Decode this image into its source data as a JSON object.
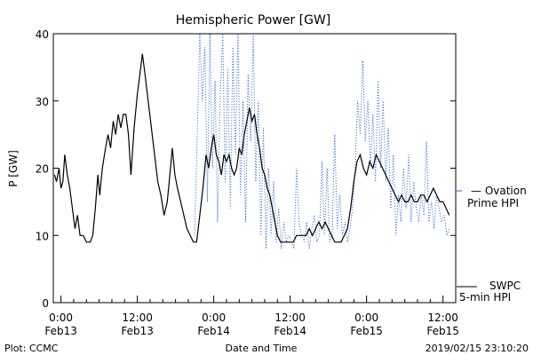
{
  "footer": {
    "plot_credit": "Plot: CCMC",
    "timestamp": "2019/02/15 23:10:20"
  },
  "legend": {
    "ovation_line1": "— Ovation",
    "ovation_line2": "Prime HPI",
    "swpc_line1": "SWPC",
    "swpc_line2": "5-min HPI"
  },
  "colors": {
    "swpc": "#000000",
    "ovation": "#1f5fd6",
    "axis": "#000000"
  },
  "chart_data": {
    "type": "line",
    "title": "Hemispheric Power [GW]",
    "xlabel": "Date and Time",
    "ylabel": "P [GW]",
    "ylim": [
      0,
      40
    ],
    "xlim": [
      0,
      72
    ],
    "x_units": "hours since 2019-02-13 00:00",
    "yticks": [
      0,
      10,
      20,
      30,
      40
    ],
    "xticks": [
      {
        "x": 0,
        "line1": "0:00",
        "line2": "Feb13"
      },
      {
        "x": 12,
        "line1": "12:00",
        "line2": "Feb13"
      },
      {
        "x": 24,
        "line1": "0:00",
        "line2": "Feb14"
      },
      {
        "x": 36,
        "line1": "12:00",
        "line2": "Feb14"
      },
      {
        "x": 48,
        "line1": "0:00",
        "line2": "Feb15"
      },
      {
        "x": 60,
        "line1": "12:00",
        "line2": "Feb15"
      }
    ],
    "grid": false,
    "legend_position": "right",
    "series": [
      {
        "name": "SWPC 5-min HPI",
        "style": "solid",
        "points": [
          [
            -1.0,
            19
          ],
          [
            -0.7,
            18
          ],
          [
            -0.3,
            20
          ],
          [
            0,
            17
          ],
          [
            0.3,
            18
          ],
          [
            0.6,
            22
          ],
          [
            1.0,
            19
          ],
          [
            1.4,
            17
          ],
          [
            1.8,
            14
          ],
          [
            2.2,
            11
          ],
          [
            2.6,
            13
          ],
          [
            3.0,
            10
          ],
          [
            3.5,
            10
          ],
          [
            4.0,
            9
          ],
          [
            4.6,
            9
          ],
          [
            5.0,
            10
          ],
          [
            5.4,
            14
          ],
          [
            5.8,
            19
          ],
          [
            6.1,
            16
          ],
          [
            6.5,
            20
          ],
          [
            7.0,
            23
          ],
          [
            7.4,
            25
          ],
          [
            7.8,
            23
          ],
          [
            8.2,
            27
          ],
          [
            8.6,
            25
          ],
          [
            9.0,
            28
          ],
          [
            9.4,
            26
          ],
          [
            9.8,
            28
          ],
          [
            10.2,
            28
          ],
          [
            10.6,
            25
          ],
          [
            11.0,
            19
          ],
          [
            11.5,
            26
          ],
          [
            12.0,
            31
          ],
          [
            12.4,
            34
          ],
          [
            12.8,
            37
          ],
          [
            13.2,
            34
          ],
          [
            13.7,
            30
          ],
          [
            14.2,
            26
          ],
          [
            14.7,
            22
          ],
          [
            15.2,
            18
          ],
          [
            15.7,
            16
          ],
          [
            16.2,
            13
          ],
          [
            16.7,
            15
          ],
          [
            17.1,
            19
          ],
          [
            17.5,
            23
          ],
          [
            17.9,
            19
          ],
          [
            18.3,
            17
          ],
          [
            18.8,
            15
          ],
          [
            19.3,
            13
          ],
          [
            19.8,
            11
          ],
          [
            20.3,
            10
          ],
          [
            20.8,
            9
          ],
          [
            21.3,
            9
          ],
          [
            21.8,
            13
          ],
          [
            22.3,
            17
          ],
          [
            22.8,
            22
          ],
          [
            23.2,
            20
          ],
          [
            23.6,
            23
          ],
          [
            24.0,
            25
          ],
          [
            24.4,
            22
          ],
          [
            24.8,
            21
          ],
          [
            25.2,
            19
          ],
          [
            25.6,
            22
          ],
          [
            26.0,
            21
          ],
          [
            26.4,
            22
          ],
          [
            26.8,
            20
          ],
          [
            27.2,
            19
          ],
          [
            27.6,
            20
          ],
          [
            28.0,
            23
          ],
          [
            28.4,
            22
          ],
          [
            28.8,
            25
          ],
          [
            29.2,
            27
          ],
          [
            29.6,
            29
          ],
          [
            30.0,
            27
          ],
          [
            30.4,
            28
          ],
          [
            30.8,
            25
          ],
          [
            31.2,
            23
          ],
          [
            31.6,
            20
          ],
          [
            32.0,
            19
          ],
          [
            32.4,
            17
          ],
          [
            32.8,
            16
          ],
          [
            33.2,
            14
          ],
          [
            33.6,
            12
          ],
          [
            34.0,
            10
          ],
          [
            34.5,
            9
          ],
          [
            35.0,
            9
          ],
          [
            35.5,
            9
          ],
          [
            36.0,
            9
          ],
          [
            36.5,
            9
          ],
          [
            37.0,
            10
          ],
          [
            37.5,
            10
          ],
          [
            38.0,
            10
          ],
          [
            38.5,
            10
          ],
          [
            39.0,
            11
          ],
          [
            39.5,
            10
          ],
          [
            40.0,
            11
          ],
          [
            40.5,
            12
          ],
          [
            41.0,
            11
          ],
          [
            41.5,
            12
          ],
          [
            42.0,
            11
          ],
          [
            42.5,
            10
          ],
          [
            43.0,
            9
          ],
          [
            43.5,
            9
          ],
          [
            44.0,
            9
          ],
          [
            44.5,
            10
          ],
          [
            45.0,
            11
          ],
          [
            45.5,
            14
          ],
          [
            46.0,
            18
          ],
          [
            46.5,
            21
          ],
          [
            47.0,
            22
          ],
          [
            47.5,
            20
          ],
          [
            48.0,
            19
          ],
          [
            48.5,
            21
          ],
          [
            49.0,
            20
          ],
          [
            49.5,
            22
          ],
          [
            50.0,
            21
          ],
          [
            50.5,
            20
          ],
          [
            51.0,
            19
          ],
          [
            51.5,
            18
          ],
          [
            52.0,
            17
          ],
          [
            52.5,
            16
          ],
          [
            53.0,
            15
          ],
          [
            53.5,
            16
          ],
          [
            54.0,
            15
          ],
          [
            54.5,
            15
          ],
          [
            55.0,
            16
          ],
          [
            55.5,
            15
          ],
          [
            56.0,
            15
          ],
          [
            56.5,
            16
          ],
          [
            57.0,
            16
          ],
          [
            57.5,
            15
          ],
          [
            58.0,
            16
          ],
          [
            58.5,
            17
          ],
          [
            59.0,
            16
          ],
          [
            59.5,
            15
          ],
          [
            60.0,
            15
          ],
          [
            60.5,
            14
          ],
          [
            61.0,
            13
          ]
        ]
      },
      {
        "name": "Ovation Prime HPI",
        "style": "dotted",
        "points": [
          [
            21.0,
            10
          ],
          [
            21.4,
            25
          ],
          [
            21.8,
            40
          ],
          [
            22.2,
            30
          ],
          [
            22.6,
            38
          ],
          [
            23.0,
            15
          ],
          [
            23.4,
            40
          ],
          [
            23.8,
            20
          ],
          [
            24.2,
            33
          ],
          [
            24.6,
            12
          ],
          [
            25.0,
            30
          ],
          [
            25.4,
            40
          ],
          [
            25.8,
            18
          ],
          [
            26.2,
            35
          ],
          [
            26.6,
            14
          ],
          [
            27.0,
            38
          ],
          [
            27.4,
            22
          ],
          [
            27.8,
            40
          ],
          [
            28.2,
            16
          ],
          [
            28.6,
            30
          ],
          [
            29.0,
            12
          ],
          [
            29.4,
            34
          ],
          [
            29.8,
            24
          ],
          [
            30.2,
            40
          ],
          [
            30.6,
            18
          ],
          [
            31.0,
            30
          ],
          [
            31.4,
            10
          ],
          [
            31.8,
            26
          ],
          [
            32.2,
            8
          ],
          [
            32.6,
            20
          ],
          [
            33.0,
            10
          ],
          [
            33.4,
            18
          ],
          [
            33.8,
            9
          ],
          [
            34.2,
            14
          ],
          [
            34.6,
            8
          ],
          [
            35.0,
            12
          ],
          [
            35.4,
            9
          ],
          [
            35.8,
            10
          ],
          [
            36.2,
            9
          ],
          [
            36.6,
            8
          ],
          [
            37.0,
            20
          ],
          [
            37.4,
            12
          ],
          [
            37.8,
            10
          ],
          [
            38.2,
            9
          ],
          [
            38.6,
            12
          ],
          [
            39.0,
            8
          ],
          [
            39.4,
            11
          ],
          [
            39.8,
            13
          ],
          [
            40.2,
            9
          ],
          [
            40.6,
            10
          ],
          [
            41.0,
            21
          ],
          [
            41.4,
            10
          ],
          [
            41.8,
            20
          ],
          [
            42.2,
            9
          ],
          [
            42.6,
            10
          ],
          [
            43.0,
            25
          ],
          [
            43.4,
            11
          ],
          [
            43.8,
            16
          ],
          [
            44.2,
            10
          ],
          [
            44.6,
            12
          ],
          [
            45.0,
            9
          ],
          [
            45.4,
            11
          ],
          [
            45.8,
            14
          ],
          [
            46.2,
            20
          ],
          [
            46.6,
            30
          ],
          [
            47.0,
            25
          ],
          [
            47.4,
            36
          ],
          [
            47.8,
            24
          ],
          [
            48.2,
            30
          ],
          [
            48.6,
            20
          ],
          [
            49.0,
            28
          ],
          [
            49.4,
            18
          ],
          [
            49.8,
            33
          ],
          [
            50.2,
            20
          ],
          [
            50.6,
            30
          ],
          [
            51.0,
            18
          ],
          [
            51.4,
            26
          ],
          [
            51.8,
            14
          ],
          [
            52.2,
            22
          ],
          [
            52.6,
            10
          ],
          [
            53.0,
            16
          ],
          [
            53.4,
            12
          ],
          [
            53.8,
            20
          ],
          [
            54.2,
            14
          ],
          [
            54.6,
            22
          ],
          [
            55.0,
            12
          ],
          [
            55.4,
            18
          ],
          [
            55.8,
            14
          ],
          [
            56.2,
            12
          ],
          [
            56.6,
            16
          ],
          [
            57.0,
            13
          ],
          [
            57.4,
            24
          ],
          [
            57.8,
            12
          ],
          [
            58.2,
            15
          ],
          [
            58.6,
            11
          ],
          [
            59.0,
            16
          ],
          [
            59.4,
            14
          ],
          [
            59.8,
            12
          ],
          [
            60.2,
            13
          ],
          [
            60.6,
            10
          ],
          [
            61.0,
            11
          ]
        ]
      }
    ]
  }
}
